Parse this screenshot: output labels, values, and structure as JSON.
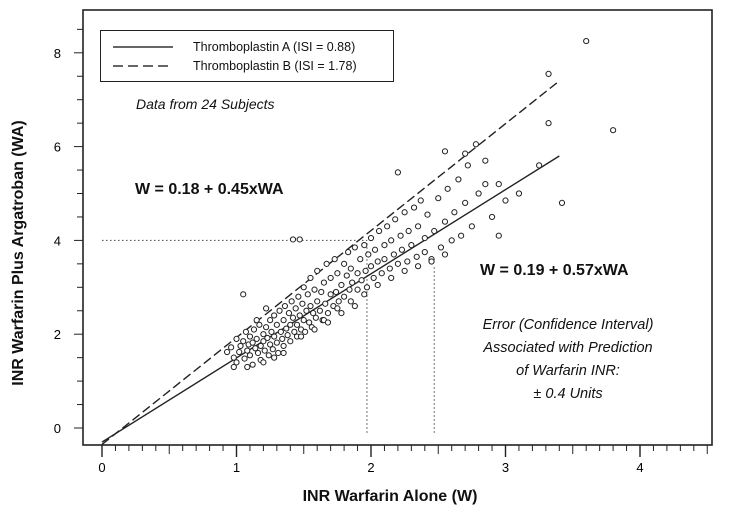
{
  "chart_data": {
    "type": "scatter",
    "xlabel": "INR Warfarin Alone (W)",
    "ylabel": "INR Warfarin Plus Argatroban (WA)",
    "xlim": [
      0,
      4.5
    ],
    "ylim": [
      -0.1,
      8.6
    ],
    "xticks": [
      "0",
      "1",
      "2",
      "3",
      "4"
    ],
    "yticks": [
      "0",
      "2",
      "4",
      "6",
      "8"
    ],
    "grid": false,
    "legend": {
      "position": "top-left",
      "entries": [
        {
          "label": "Thromboplastin A (ISI = 0.88)",
          "style": "solid"
        },
        {
          "label": "Thromboplastin B (ISI = 1.78)",
          "style": "dashed"
        }
      ]
    },
    "series": [
      {
        "style": "solid",
        "relation": "W = 0.19 + 0.57xWA",
        "line": [
          [
            0.0,
            -0.3
          ],
          [
            3.4,
            5.8
          ]
        ]
      },
      {
        "style": "dashed",
        "relation": "W = 0.18 + 0.45xWA",
        "line": [
          [
            0.0,
            -0.35
          ],
          [
            3.4,
            7.4
          ]
        ]
      }
    ],
    "reference_lines": [
      {
        "type": "horizontal",
        "y": 4.0,
        "x_from": 0,
        "x_to": 1.97
      },
      {
        "type": "vertical",
        "x": 1.97,
        "y_from": -0.1,
        "y_to": 4.0
      },
      {
        "type": "vertical",
        "x": 2.47,
        "y_from": -0.1,
        "y_to": 3.48
      }
    ],
    "annotations": {
      "subjects_note": "Data from 24 Subjects",
      "eq_dashed": "W = 0.18 + 0.45xWA",
      "eq_solid": "W = 0.19 + 0.57xWA",
      "error_lines": [
        "Error (Confidence Interval)",
        "Associated with Prediction",
        "of Warfarin INR:",
        "± 0.4 Units"
      ]
    },
    "points": [
      [
        0.93,
        1.62
      ],
      [
        0.96,
        1.72
      ],
      [
        0.98,
        1.5
      ],
      [
        1.0,
        1.9
      ],
      [
        1.0,
        1.4
      ],
      [
        1.02,
        1.62
      ],
      [
        1.03,
        1.75
      ],
      [
        1.05,
        1.85
      ],
      [
        1.06,
        1.48
      ],
      [
        1.07,
        2.05
      ],
      [
        1.08,
        1.65
      ],
      [
        1.09,
        1.78
      ],
      [
        1.1,
        1.95
      ],
      [
        1.1,
        1.55
      ],
      [
        1.12,
        1.82
      ],
      [
        1.12,
        1.35
      ],
      [
        1.13,
        2.1
      ],
      [
        1.14,
        1.7
      ],
      [
        1.15,
        1.9
      ],
      [
        1.16,
        1.6
      ],
      [
        1.17,
        2.2
      ],
      [
        1.18,
        1.75
      ],
      [
        1.18,
        1.45
      ],
      [
        1.2,
        2.0
      ],
      [
        1.2,
        1.85
      ],
      [
        1.21,
        1.65
      ],
      [
        1.22,
        2.15
      ],
      [
        1.23,
        1.92
      ],
      [
        1.24,
        1.55
      ],
      [
        1.25,
        2.3
      ],
      [
        1.25,
        1.78
      ],
      [
        1.26,
        2.05
      ],
      [
        1.27,
        1.68
      ],
      [
        1.28,
        2.4
      ],
      [
        1.28,
        1.95
      ],
      [
        1.3,
        2.2
      ],
      [
        1.3,
        1.82
      ],
      [
        1.31,
        1.6
      ],
      [
        1.32,
        2.5
      ],
      [
        1.33,
        2.05
      ],
      [
        1.34,
        1.9
      ],
      [
        1.35,
        2.3
      ],
      [
        1.35,
        1.75
      ],
      [
        1.36,
        2.6
      ],
      [
        1.37,
        2.12
      ],
      [
        1.38,
        1.98
      ],
      [
        1.39,
        2.45
      ],
      [
        1.4,
        2.2
      ],
      [
        1.4,
        1.85
      ],
      [
        1.41,
        2.7
      ],
      [
        1.42,
        2.35
      ],
      [
        1.43,
        2.05
      ],
      [
        1.44,
        2.55
      ],
      [
        1.45,
        2.2
      ],
      [
        1.45,
        1.95
      ],
      [
        1.46,
        2.8
      ],
      [
        1.47,
        2.4
      ],
      [
        1.48,
        2.1
      ],
      [
        1.49,
        2.65
      ],
      [
        1.5,
        2.3
      ],
      [
        1.5,
        3.0
      ],
      [
        1.51,
        2.05
      ],
      [
        1.52,
        2.5
      ],
      [
        1.53,
        2.85
      ],
      [
        1.54,
        2.25
      ],
      [
        1.55,
        2.6
      ],
      [
        1.55,
        3.2
      ],
      [
        1.56,
        2.15
      ],
      [
        1.57,
        2.45
      ],
      [
        1.58,
        2.95
      ],
      [
        1.59,
        2.35
      ],
      [
        1.6,
        2.7
      ],
      [
        1.6,
        3.35
      ],
      [
        1.62,
        2.5
      ],
      [
        1.63,
        2.9
      ],
      [
        1.64,
        2.3
      ],
      [
        1.65,
        3.1
      ],
      [
        1.66,
        2.65
      ],
      [
        1.67,
        3.5
      ],
      [
        1.68,
        2.45
      ],
      [
        1.7,
        2.85
      ],
      [
        1.7,
        3.2
      ],
      [
        1.72,
        2.6
      ],
      [
        1.73,
        3.6
      ],
      [
        1.74,
        2.9
      ],
      [
        1.75,
        3.3
      ],
      [
        1.76,
        2.7
      ],
      [
        1.78,
        3.05
      ],
      [
        1.8,
        3.5
      ],
      [
        1.8,
        2.8
      ],
      [
        1.82,
        3.25
      ],
      [
        1.83,
        3.75
      ],
      [
        1.84,
        2.95
      ],
      [
        1.85,
        3.4
      ],
      [
        1.86,
        3.1
      ],
      [
        1.88,
        3.85
      ],
      [
        1.9,
        3.3
      ],
      [
        1.9,
        2.95
      ],
      [
        1.92,
        3.6
      ],
      [
        1.93,
        3.15
      ],
      [
        1.95,
        3.9
      ],
      [
        1.96,
        3.35
      ],
      [
        1.97,
        3.0
      ],
      [
        1.98,
        3.7
      ],
      [
        2.0,
        3.45
      ],
      [
        2.0,
        4.05
      ],
      [
        2.02,
        3.2
      ],
      [
        2.03,
        3.8
      ],
      [
        2.05,
        3.55
      ],
      [
        2.06,
        4.2
      ],
      [
        2.08,
        3.3
      ],
      [
        2.1,
        3.9
      ],
      [
        2.1,
        3.6
      ],
      [
        2.12,
        4.3
      ],
      [
        2.14,
        3.4
      ],
      [
        2.15,
        4.0
      ],
      [
        2.17,
        3.7
      ],
      [
        2.18,
        4.45
      ],
      [
        2.2,
        3.5
      ],
      [
        2.22,
        4.1
      ],
      [
        2.23,
        3.8
      ],
      [
        2.25,
        4.6
      ],
      [
        2.27,
        3.55
      ],
      [
        2.28,
        4.2
      ],
      [
        2.3,
        3.9
      ],
      [
        2.32,
        4.7
      ],
      [
        2.34,
        3.65
      ],
      [
        2.35,
        4.3
      ],
      [
        2.37,
        4.85
      ],
      [
        2.4,
        3.75
      ],
      [
        2.4,
        4.05
      ],
      [
        2.42,
        4.55
      ],
      [
        2.45,
        3.6
      ],
      [
        2.47,
        4.2
      ],
      [
        2.5,
        4.9
      ],
      [
        2.52,
        3.85
      ],
      [
        2.55,
        4.4
      ],
      [
        2.57,
        5.1
      ],
      [
        2.6,
        4.0
      ],
      [
        2.62,
        4.6
      ],
      [
        2.65,
        5.3
      ],
      [
        2.67,
        4.1
      ],
      [
        2.7,
        4.8
      ],
      [
        2.72,
        5.6
      ],
      [
        2.75,
        4.3
      ],
      [
        2.8,
        5.0
      ],
      [
        2.85,
        5.7
      ],
      [
        2.9,
        4.5
      ],
      [
        2.95,
        5.2
      ],
      [
        3.0,
        4.85
      ],
      [
        2.55,
        5.9
      ],
      [
        2.7,
        5.85
      ],
      [
        2.78,
        6.05
      ],
      [
        2.2,
        5.45
      ],
      [
        1.42,
        4.02
      ],
      [
        1.47,
        4.02
      ],
      [
        1.05,
        2.85
      ],
      [
        1.15,
        2.3
      ],
      [
        0.98,
        1.3
      ],
      [
        1.08,
        1.3
      ],
      [
        1.2,
        1.4
      ],
      [
        1.28,
        1.5
      ],
      [
        1.35,
        1.6
      ],
      [
        1.22,
        2.55
      ],
      [
        2.85,
        5.2
      ],
      [
        2.95,
        4.1
      ],
      [
        3.1,
        5.0
      ],
      [
        3.25,
        5.6
      ],
      [
        3.32,
        7.55
      ],
      [
        3.32,
        6.5
      ],
      [
        3.42,
        4.8
      ],
      [
        3.6,
        8.25
      ],
      [
        3.8,
        6.35
      ],
      [
        1.65,
        2.3
      ],
      [
        1.75,
        2.55
      ],
      [
        1.85,
        2.7
      ],
      [
        1.95,
        2.85
      ],
      [
        2.05,
        3.05
      ],
      [
        2.15,
        3.2
      ],
      [
        2.25,
        3.35
      ],
      [
        2.35,
        3.45
      ],
      [
        2.45,
        3.55
      ],
      [
        2.55,
        3.7
      ],
      [
        1.48,
        1.95
      ],
      [
        1.58,
        2.1
      ],
      [
        1.68,
        2.25
      ],
      [
        1.78,
        2.45
      ],
      [
        1.88,
        2.6
      ]
    ]
  }
}
